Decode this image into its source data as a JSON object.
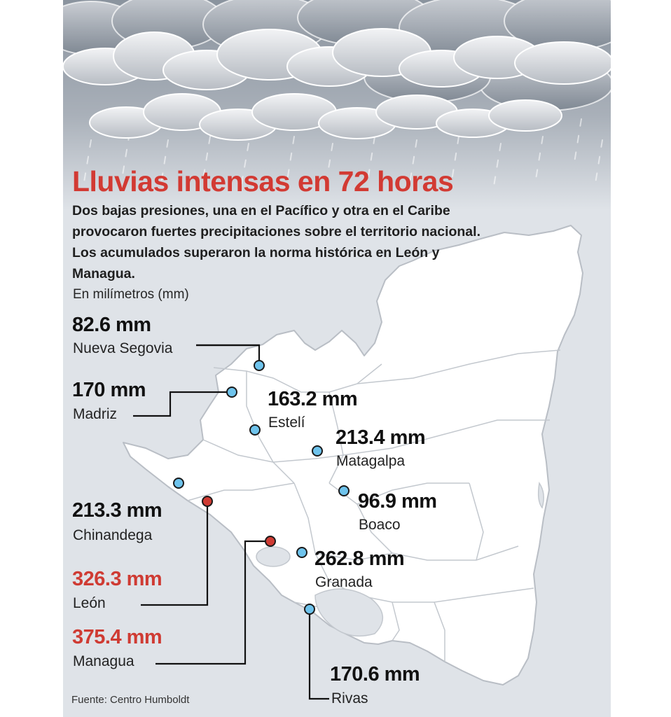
{
  "title": "Lluvias intensas en 72 horas",
  "intro": "Dos bajas presiones, una en el Pacífico y otra en el Caribe provocaron fuertes precipitaciones sobre el territorio nacional. Los acumulados superaron la norma histórica en León y Managua.",
  "unit_label": "En milímetros (mm)",
  "source": "Fuente: Centro Humboldt",
  "colors": {
    "highlight": "#d23a33",
    "marker_normal": "#6ec3ec",
    "marker_high": "#cf3b33",
    "background": "#dfe3e8"
  },
  "stations": [
    {
      "name": "Nueva Segovia",
      "value": "82.6 mm",
      "high": false
    },
    {
      "name": "Madriz",
      "value": "170 mm",
      "high": false
    },
    {
      "name": "Estelí",
      "value": "163.2 mm",
      "high": false
    },
    {
      "name": "Matagalpa",
      "value": "213.4 mm",
      "high": false
    },
    {
      "name": "Boaco",
      "value": "96.9 mm",
      "high": false
    },
    {
      "name": "Chinandega",
      "value": "213.3 mm",
      "high": false
    },
    {
      "name": "León",
      "value": "326.3 mm",
      "high": true
    },
    {
      "name": "Granada",
      "value": "262.8 mm",
      "high": false
    },
    {
      "name": "Managua",
      "value": "375.4 mm",
      "high": true
    },
    {
      "name": "Rivas",
      "value": "170.6 mm",
      "high": false
    }
  ]
}
